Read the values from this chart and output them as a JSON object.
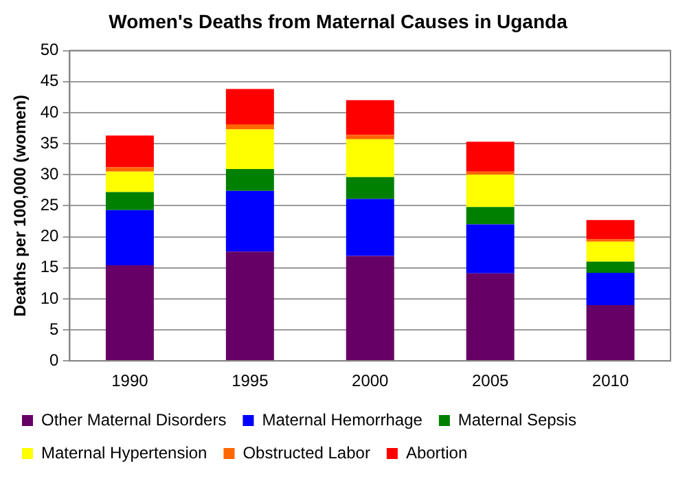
{
  "chart_data": {
    "type": "bar",
    "title": "Women's Deaths from Maternal Causes in Uganda",
    "ylabel": "Deaths per 100,000 (women)",
    "categories": [
      "1990",
      "1995",
      "2000",
      "2005",
      "2010"
    ],
    "series": [
      {
        "name": "Other Maternal Disorders",
        "color": "#660066",
        "values": [
          15.4,
          17.6,
          16.9,
          14.1,
          9.0
        ]
      },
      {
        "name": "Maternal Hemorrhage",
        "color": "#0000ff",
        "values": [
          8.9,
          9.8,
          9.2,
          7.9,
          5.2
        ]
      },
      {
        "name": "Maternal Sepsis",
        "color": "#008000",
        "values": [
          2.9,
          3.5,
          3.5,
          2.8,
          1.8
        ]
      },
      {
        "name": "Maternal Hypertension",
        "color": "#ffff00",
        "values": [
          3.3,
          6.4,
          6.1,
          5.2,
          3.2
        ]
      },
      {
        "name": "Obstructed Labor",
        "color": "#ff6600",
        "values": [
          0.7,
          0.8,
          0.7,
          0.5,
          0.4
        ]
      },
      {
        "name": "Abortion",
        "color": "#ff0000",
        "values": [
          5.1,
          5.7,
          5.6,
          4.8,
          3.1
        ]
      }
    ],
    "stacked": true,
    "ylim": [
      0,
      50
    ],
    "yticks": [
      0,
      5,
      10,
      15,
      20,
      25,
      30,
      35,
      40,
      45,
      50
    ],
    "grid": "y",
    "legend": "bottom"
  }
}
